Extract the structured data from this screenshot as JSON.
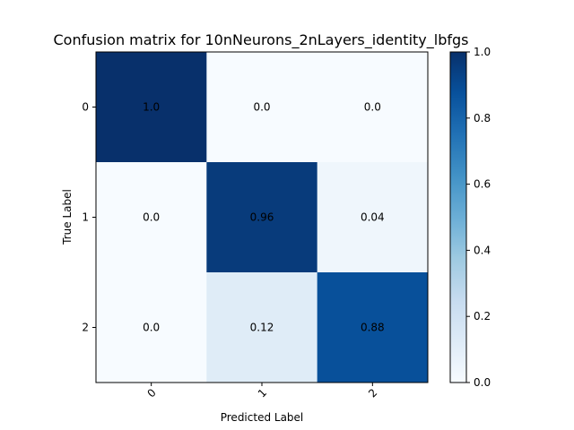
{
  "chart_data": {
    "type": "heatmap",
    "title": "Confusion matrix for 10nNeurons_2nLayers_identity_lbfgs",
    "xlabel": "Predicted Label",
    "ylabel": "True Label",
    "x_categories": [
      "0",
      "1",
      "2"
    ],
    "y_categories": [
      "0",
      "1",
      "2"
    ],
    "values": [
      [
        1.0,
        0.0,
        0.0
      ],
      [
        0.0,
        0.96,
        0.04
      ],
      [
        0.0,
        0.12,
        0.88
      ]
    ],
    "cell_labels": [
      [
        "1.0",
        "0.0",
        "0.0"
      ],
      [
        "0.0",
        "0.96",
        "0.04"
      ],
      [
        "0.0",
        "0.12",
        "0.88"
      ]
    ],
    "colormap": "Blues",
    "colorbar": {
      "range": [
        0.0,
        1.0
      ],
      "ticks": [
        "0.0",
        "0.2",
        "0.4",
        "0.6",
        "0.8",
        "1.0"
      ]
    },
    "x_tick_rotation": "45 degrees",
    "grid": false
  }
}
